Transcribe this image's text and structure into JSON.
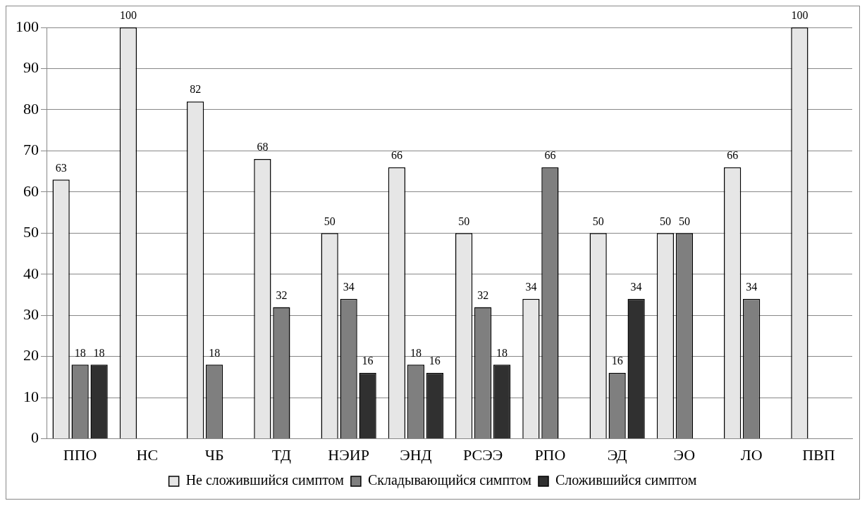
{
  "chart_data": {
    "type": "bar",
    "categories": [
      "ППО",
      "НС",
      "ЧБ",
      "ТД",
      "НЭИР",
      "ЭНД",
      "РСЭЭ",
      "РПО",
      "ЭД",
      "ЭО",
      "ЛО",
      "ПВП"
    ],
    "series": [
      {
        "name": "Не сложившийся симптом",
        "color": "#e6e6e6",
        "values": [
          63,
          100,
          82,
          68,
          50,
          66,
          50,
          34,
          50,
          50,
          66,
          100
        ]
      },
      {
        "name": "Складывающийся симптом",
        "color": "#7f7f7f",
        "values": [
          18,
          null,
          18,
          32,
          34,
          18,
          32,
          66,
          16,
          50,
          34,
          null
        ]
      },
      {
        "name": "Сложившийся симптом",
        "color": "#303030",
        "values": [
          18,
          null,
          null,
          null,
          16,
          16,
          18,
          null,
          34,
          null,
          null,
          null
        ]
      }
    ],
    "ylim": [
      0,
      100
    ],
    "yticks": [
      0,
      10,
      20,
      30,
      40,
      50,
      60,
      70,
      80,
      90,
      100
    ],
    "grid": "y",
    "legend": "bottom",
    "data_labels": true
  }
}
